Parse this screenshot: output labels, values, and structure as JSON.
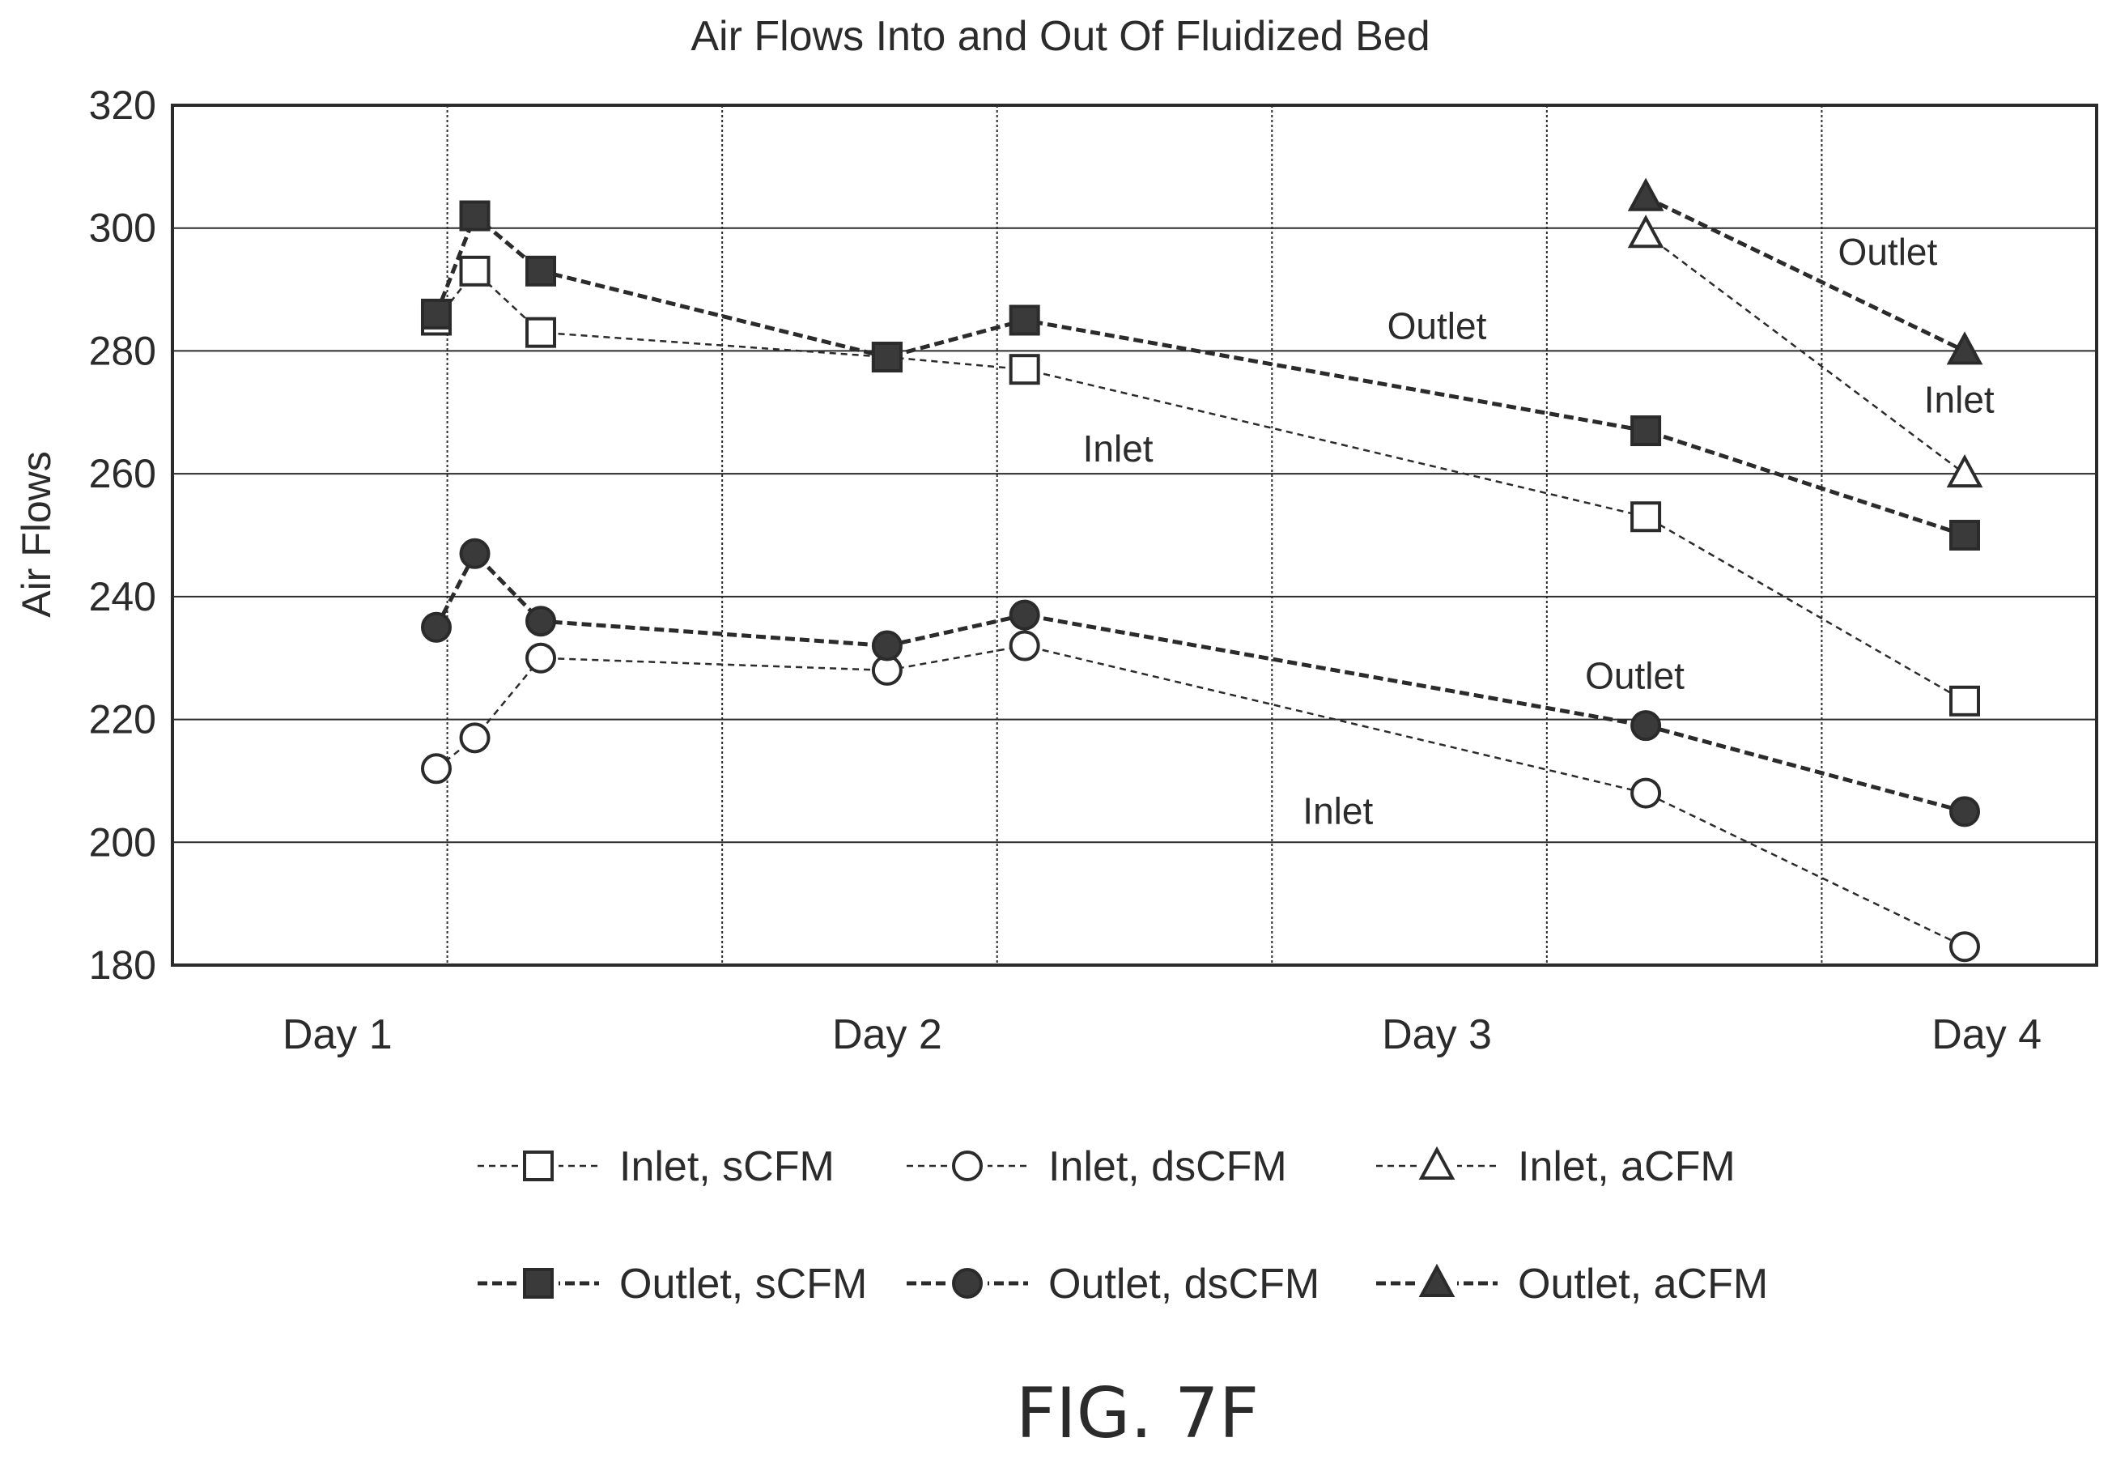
{
  "chart_data": {
    "type": "line",
    "title": "Air Flows Into and Out Of Fluidized Bed",
    "xlabel": "",
    "ylabel": "Air Flows",
    "ylim": [
      180,
      320
    ],
    "yticks": [
      180,
      200,
      220,
      240,
      260,
      280,
      300,
      320
    ],
    "xlim": [
      0.7,
      4.2
    ],
    "categories": [
      "Day 1",
      "Day 2",
      "Day 3",
      "Day 4"
    ],
    "category_x": [
      1,
      2,
      3,
      4
    ],
    "grid": true,
    "legend_position": "bottom",
    "series": [
      {
        "name": "Inlet, sCFM",
        "marker": "square-open",
        "line": "thin-dashed",
        "x": [
          1.18,
          1.25,
          1.37,
          2.0,
          2.25,
          3.38,
          3.96
        ],
        "y": [
          285,
          293,
          283,
          279,
          277,
          253,
          223
        ]
      },
      {
        "name": "Inlet, dsCFM",
        "marker": "circle-open",
        "line": "thin-dashed",
        "x": [
          1.18,
          1.25,
          1.37,
          2.0,
          2.25,
          3.38,
          3.96
        ],
        "y": [
          212,
          217,
          230,
          228,
          232,
          208,
          183
        ]
      },
      {
        "name": "Inlet, aCFM",
        "marker": "triangle-open",
        "line": "thin-dashed",
        "x": [
          3.38,
          3.96
        ],
        "y": [
          299,
          260
        ]
      },
      {
        "name": "Outlet, sCFM",
        "marker": "square-filled",
        "line": "thick-dashed",
        "x": [
          1.18,
          1.25,
          1.37,
          2.0,
          2.25,
          3.38,
          3.96
        ],
        "y": [
          286,
          302,
          293,
          279,
          285,
          267,
          250
        ]
      },
      {
        "name": "Outlet, dsCFM",
        "marker": "circle-filled",
        "line": "thick-dashed",
        "x": [
          1.18,
          1.25,
          1.37,
          2.0,
          2.25,
          3.38,
          3.96
        ],
        "y": [
          235,
          247,
          236,
          232,
          237,
          219,
          205
        ]
      },
      {
        "name": "Outlet, aCFM",
        "marker": "triangle-filled",
        "line": "thick-dashed",
        "x": [
          3.38,
          3.96
        ],
        "y": [
          305,
          280
        ]
      }
    ],
    "annotations": [
      {
        "text": "Outlet",
        "x": 3.0,
        "y": 282
      },
      {
        "text": "Inlet",
        "x": 2.42,
        "y": 262
      },
      {
        "text": "Outlet",
        "x": 3.82,
        "y": 294
      },
      {
        "text": "Inlet",
        "x": 3.95,
        "y": 270
      },
      {
        "text": "Outlet",
        "x": 3.36,
        "y": 225
      },
      {
        "text": "Inlet",
        "x": 2.82,
        "y": 203
      }
    ],
    "figure_label": "FIG. 7F"
  }
}
